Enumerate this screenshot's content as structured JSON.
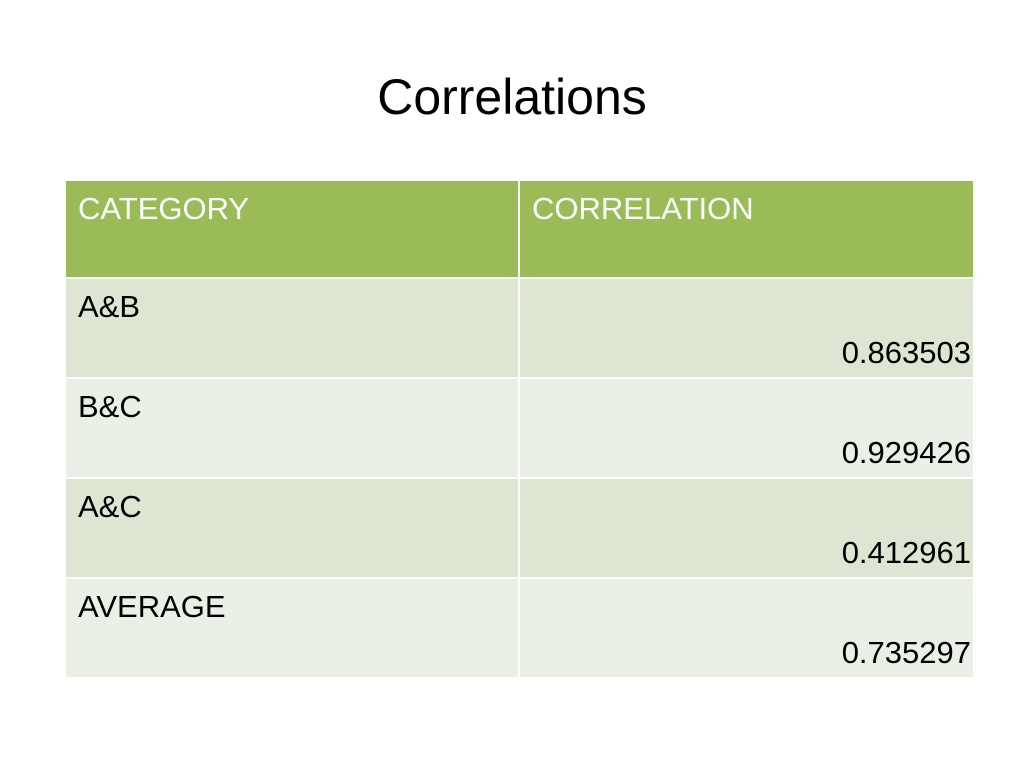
{
  "slide": {
    "title": "Correlations"
  },
  "table": {
    "headers": [
      "CATEGORY",
      "CORRELATION"
    ],
    "rows": [
      {
        "category": "A&B",
        "correlation": "0.863503"
      },
      {
        "category": "B&C",
        "correlation": "0.929426"
      },
      {
        "category": "A&C",
        "correlation": "0.412961"
      },
      {
        "category": "AVERAGE",
        "correlation": "0.735297"
      }
    ]
  },
  "colors": {
    "header_bg": "#9bbb59",
    "row_odd_bg": "#dde6d2",
    "row_even_bg": "#eaf0e5",
    "header_text": "#ffffff",
    "body_text": "#000000"
  }
}
